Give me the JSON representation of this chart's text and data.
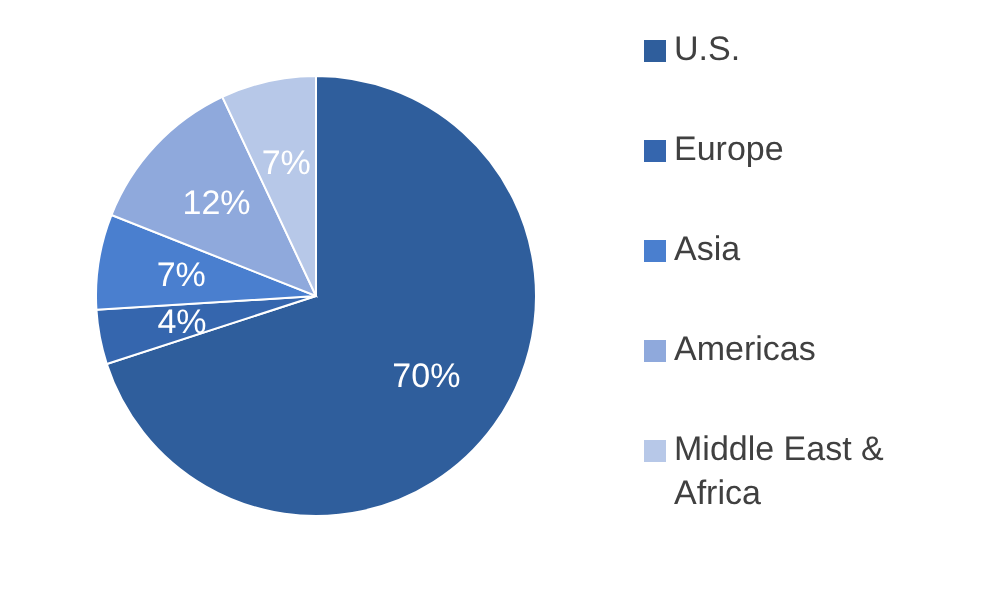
{
  "chart_data": {
    "type": "pie",
    "categories": [
      "U.S.",
      "Europe",
      "Asia",
      "Americas",
      "Middle East & Africa"
    ],
    "values": [
      70,
      4,
      7,
      12,
      7
    ],
    "colors": [
      "#2f5e9c",
      "#3566ae",
      "#4a7fcf",
      "#8fa9dc",
      "#b7c8e8"
    ],
    "value_labels": [
      "70%",
      "4%",
      "7%",
      "12%",
      "7%"
    ],
    "legend": "right"
  }
}
